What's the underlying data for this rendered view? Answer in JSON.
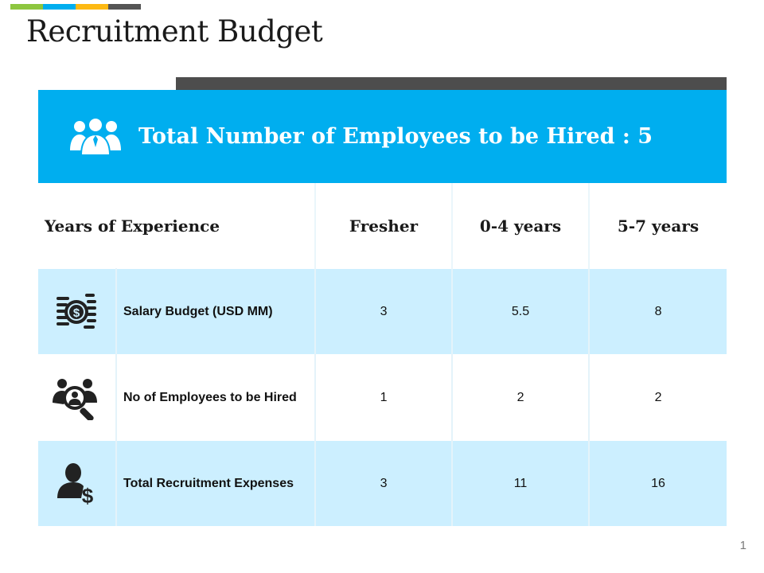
{
  "accent_colors": [
    "#8dc63f",
    "#00aeef",
    "#fdb913",
    "#555555"
  ],
  "page_title": "Recruitment Budget",
  "banner": {
    "icon": "team-icon",
    "text": "Total Number of Employees to be Hired : 5",
    "color": "#00aeef"
  },
  "table": {
    "headers": [
      "Years of Experience",
      "Fresher",
      "0-4 years",
      "5-7 years"
    ],
    "rows": [
      {
        "icon": "money-stack-icon",
        "label": "Salary Budget (USD MM)",
        "values": [
          "3",
          "5.5",
          "8"
        ]
      },
      {
        "icon": "candidate-search-icon",
        "label": "No of Employees to be Hired",
        "values": [
          "1",
          "2",
          "2"
        ]
      },
      {
        "icon": "recruitment-expense-icon",
        "label": "Total Recruitment Expenses",
        "values": [
          "3",
          "11",
          "16"
        ]
      }
    ],
    "row_colors": [
      "#ccefff",
      "#ffffff",
      "#ccefff"
    ]
  },
  "page_number": "1"
}
